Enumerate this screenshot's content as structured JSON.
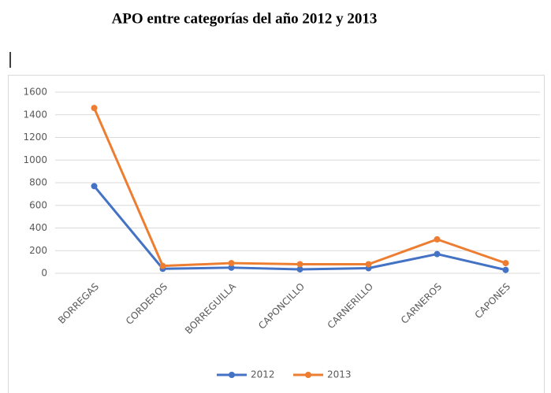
{
  "chart_data": {
    "type": "line",
    "title": "APO entre categorías del año 2012 y 2013",
    "categories": [
      "BORREGAS",
      "CORDEROS",
      "BORREGUILLA",
      "CAPONCILLO",
      "CARNERILLO",
      "CARNEROS",
      "CAPONES"
    ],
    "series": [
      {
        "name": "2012",
        "color": "#4472c4",
        "values": [
          770,
          40,
          50,
          35,
          45,
          170,
          30
        ]
      },
      {
        "name": "2013",
        "color": "#ed7d31",
        "values": [
          1460,
          65,
          90,
          80,
          80,
          300,
          90
        ]
      }
    ],
    "ylim": [
      0,
      1600
    ],
    "yticks": [
      0,
      200,
      400,
      600,
      800,
      1000,
      1200,
      1400,
      1600
    ],
    "grid": true,
    "legend": "bottom"
  }
}
